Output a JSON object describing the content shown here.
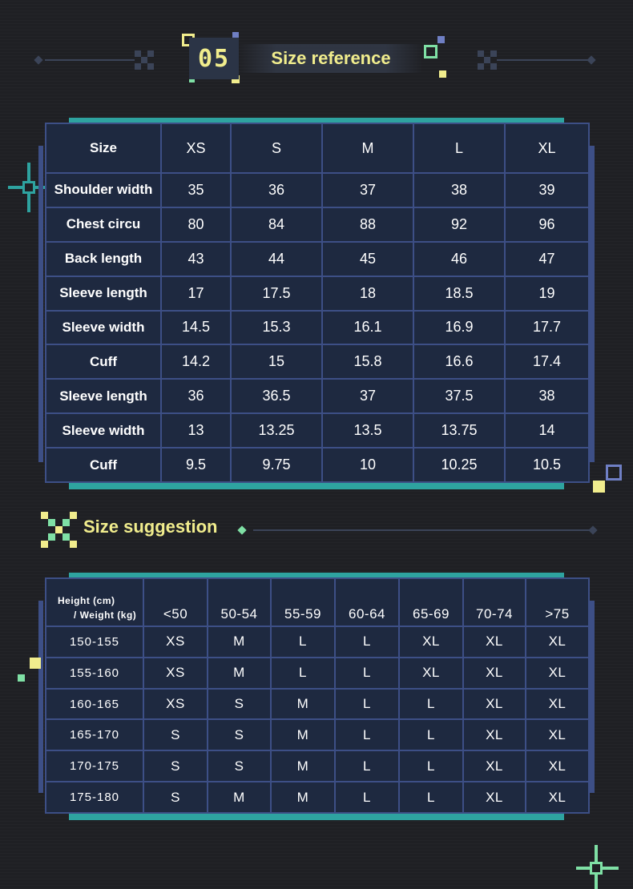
{
  "header": {
    "number": "05",
    "title": "Size reference"
  },
  "size_reference": {
    "columns": [
      "Size",
      "XS",
      "S",
      "M",
      "L",
      "XL"
    ],
    "rows": [
      [
        "Shoulder width",
        "35",
        "36",
        "37",
        "38",
        "39"
      ],
      [
        "Chest circu",
        "80",
        "84",
        "88",
        "92",
        "96"
      ],
      [
        "Back length",
        "43",
        "44",
        "45",
        "46",
        "47"
      ],
      [
        "Sleeve length",
        "17",
        "17.5",
        "18",
        "18.5",
        "19"
      ],
      [
        "Sleeve width",
        "14.5",
        "15.3",
        "16.1",
        "16.9",
        "17.7"
      ],
      [
        "Cuff",
        "14.2",
        "15",
        "15.8",
        "16.6",
        "17.4"
      ],
      [
        "Sleeve length",
        "36",
        "36.5",
        "37",
        "37.5",
        "38"
      ],
      [
        "Sleeve width",
        "13",
        "13.25",
        "13.5",
        "13.75",
        "14"
      ],
      [
        "Cuff",
        "9.5",
        "9.75",
        "10",
        "10.25",
        "10.5"
      ]
    ]
  },
  "size_suggestion": {
    "title": "Size suggestion",
    "corner_label_line1": "Height (cm)",
    "corner_label_line2": "/ Weight (kg)",
    "weight_columns": [
      "<50",
      "50-54",
      "55-59",
      "60-64",
      "65-69",
      "70-74",
      ">75"
    ],
    "rows": [
      [
        "150-155",
        "XS",
        "M",
        "L",
        "L",
        "XL",
        "XL",
        "XL"
      ],
      [
        "155-160",
        "XS",
        "M",
        "L",
        "L",
        "XL",
        "XL",
        "XL"
      ],
      [
        "160-165",
        "XS",
        "S",
        "M",
        "L",
        "L",
        "XL",
        "XL"
      ],
      [
        "165-170",
        "S",
        "S",
        "M",
        "L",
        "L",
        "XL",
        "XL"
      ],
      [
        "170-175",
        "S",
        "S",
        "M",
        "L",
        "L",
        "XL",
        "XL"
      ],
      [
        "175-180",
        "S",
        "M",
        "M",
        "L",
        "L",
        "XL",
        "XL"
      ]
    ]
  },
  "colors": {
    "background": "#1f2024",
    "table_fill": "#1e2940",
    "border": "#3d4f86",
    "teal": "#2ea3a0",
    "accent_yellow": "#f1ed8d"
  }
}
